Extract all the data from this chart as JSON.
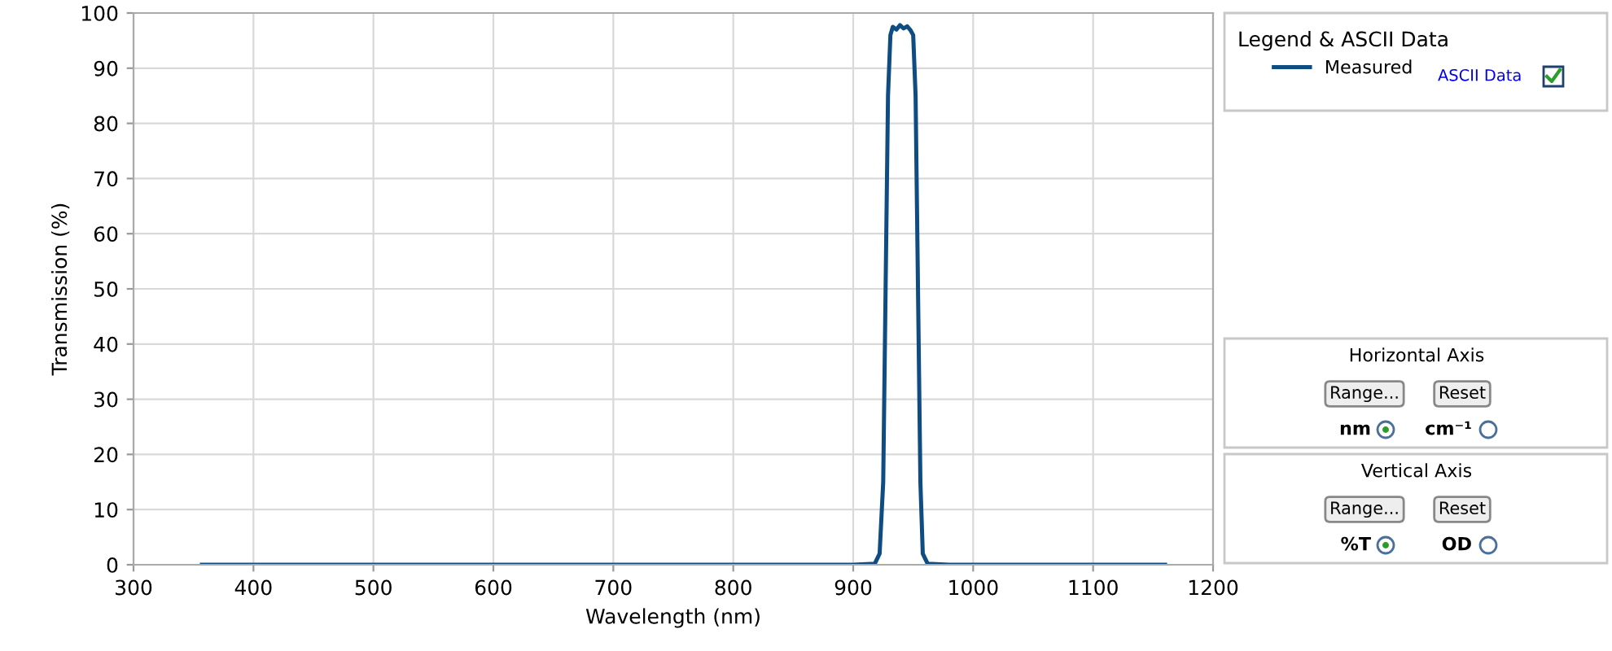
{
  "chart_data": {
    "type": "line",
    "xlabel": "Wavelength (nm)",
    "ylabel": "Transmission (%)",
    "legend_title": "Legend & ASCII Data",
    "legend": "right",
    "grid": true,
    "marker": "none",
    "line_style": "solid",
    "xlim": [
      300,
      1200
    ],
    "xticks": [
      300,
      400,
      500,
      600,
      700,
      800,
      900,
      1000,
      1100,
      1200
    ],
    "ylim": [
      0,
      100
    ],
    "yticks": [
      0,
      10,
      20,
      30,
      40,
      50,
      60,
      70,
      80,
      90,
      100
    ],
    "series": [
      {
        "name": "Measured",
        "color": "#0f4c81",
        "x": [
          357,
          900,
          918,
          922,
          925,
          927,
          929,
          931,
          933,
          936,
          939,
          942,
          945,
          948,
          950,
          952,
          954,
          956,
          958,
          962,
          980,
          1160
        ],
        "values": [
          0,
          0,
          0.2,
          2,
          15,
          50,
          85,
          96,
          97.5,
          97,
          97.8,
          97.2,
          97.6,
          96.8,
          96,
          85,
          50,
          15,
          2,
          0.2,
          0,
          0
        ]
      }
    ],
    "annotations": [
      "ASCII Data",
      "Horizontal Axis",
      "Range...",
      "Reset",
      "nm",
      "cm⁻¹",
      "Vertical Axis",
      "Range...",
      "Reset",
      "%T",
      "OD"
    ]
  }
}
